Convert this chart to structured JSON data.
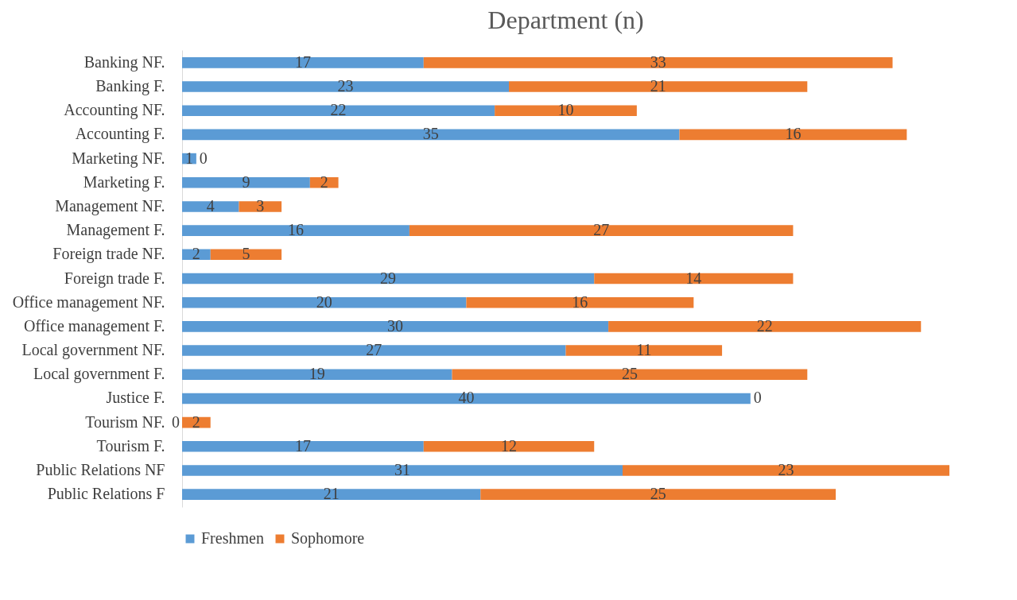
{
  "chart_data": {
    "type": "bar",
    "title": "Department (n)",
    "orientation": "horizontal",
    "stacked": true,
    "data_labels": true,
    "legend": "bottom",
    "categories": [
      "Banking NF.",
      "Banking F.",
      "Accounting  NF.",
      "Accounting  F.",
      "Marketing NF.",
      "Marketing F.",
      "Management  NF.",
      "Management  F.",
      "Foreign trade NF.",
      "Foreign trade F.",
      "Office management  NF.",
      "Office management  F.",
      "Local government NF.",
      "Local government F.",
      "Justice  F.",
      "Tourism  NF.",
      "Tourism  F.",
      "Public Relations NF",
      "Public Relations F"
    ],
    "series": [
      {
        "name": "Freshmen",
        "color": "#5b9bd5",
        "values": [
          17,
          23,
          22,
          35,
          1,
          9,
          4,
          16,
          2,
          29,
          20,
          30,
          27,
          19,
          40,
          0,
          17,
          31,
          21
        ]
      },
      {
        "name": "Sophomore",
        "color": "#ed7d31",
        "values": [
          33,
          21,
          10,
          16,
          0,
          2,
          3,
          27,
          5,
          14,
          16,
          22,
          11,
          25,
          0,
          2,
          12,
          23,
          25
        ]
      }
    ]
  }
}
